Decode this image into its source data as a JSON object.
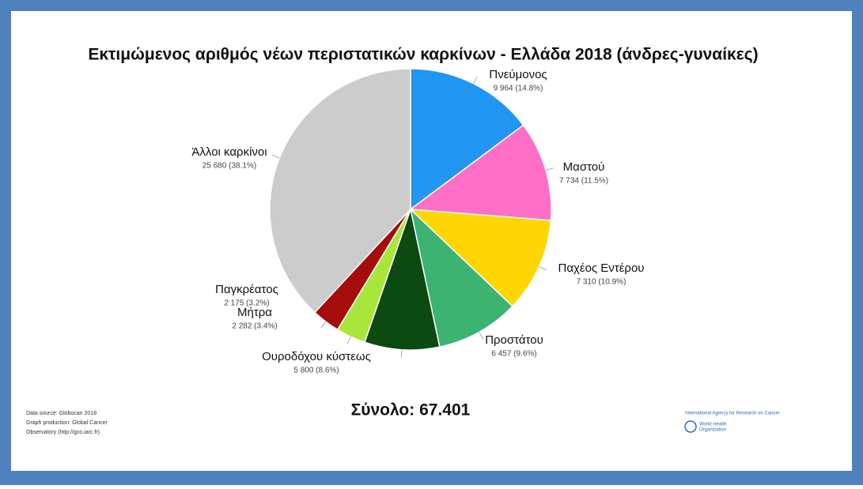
{
  "chart_data": {
    "type": "pie",
    "title": "Εκτιμώμενος αριθμός νέων περιστατικών καρκίνων - Ελλάδα 2018 (άνδρες-γυναίκες)",
    "categories": [
      "Πνεύμονος",
      "Μαστού",
      "Παχέος Εντέρου",
      "Προστάτου",
      "Ουροδόχου κύστεως",
      "Μήτρα",
      "Παγκρέατος",
      "Άλλοι καρκίνοι"
    ],
    "values": [
      9964,
      7734,
      7310,
      6457,
      5800,
      2282,
      2175,
      25680
    ],
    "value_labels": [
      "9 964 (14.8%)",
      "7 734 (11.5%)",
      "7 310 (10.9%)",
      "6 457 (9.6%)",
      "5 800 (8.6%)",
      "2 282 (3.4%)",
      "2 175 (3.2%)",
      "25 680 (38.1%)"
    ],
    "colors": [
      "#2196f3",
      "#ff6ec7",
      "#ffd600",
      "#3cb371",
      "#0b4a10",
      "#a8e63c",
      "#a50d0d",
      "#cccccc"
    ],
    "annotation": "Σύνολο: 67.401",
    "source": [
      "Data source: Globocan 2018",
      "Graph production: Global Cancer",
      "Observatory (http://gco.iarc.fr)"
    ],
    "logo": [
      "International Agency for Research on Cancer",
      "World Health",
      "Organization"
    ]
  }
}
